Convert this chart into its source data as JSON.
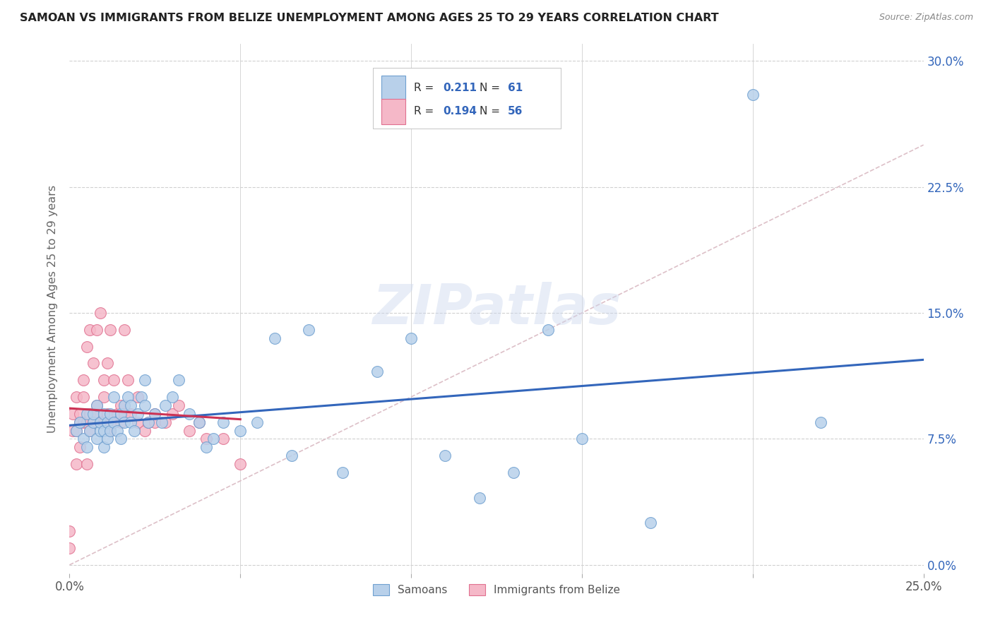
{
  "title": "SAMOAN VS IMMIGRANTS FROM BELIZE UNEMPLOYMENT AMONG AGES 25 TO 29 YEARS CORRELATION CHART",
  "source": "Source: ZipAtlas.com",
  "ylabel": "Unemployment Among Ages 25 to 29 years",
  "legend_labels": [
    "Samoans",
    "Immigrants from Belize"
  ],
  "R_samoan": 0.211,
  "N_samoan": 61,
  "R_belize": 0.194,
  "N_belize": 56,
  "xlim": [
    0.0,
    0.25
  ],
  "ylim": [
    -0.01,
    0.31
  ],
  "plot_ylim": [
    0.0,
    0.3
  ],
  "xticks": [
    0.0,
    0.05,
    0.1,
    0.15,
    0.2,
    0.25
  ],
  "yticks": [
    0.0,
    0.075,
    0.15,
    0.225,
    0.3
  ],
  "ytick_labels_right": [
    "0.0%",
    "7.5%",
    "15.0%",
    "22.5%",
    "30.0%"
  ],
  "xtick_labels_sparse": [
    "0.0%",
    "",
    "",
    "",
    "",
    "25.0%"
  ],
  "color_samoan_fill": "#b8d0ea",
  "color_samoan_edge": "#6fa0d0",
  "color_belize_fill": "#f5b8c8",
  "color_belize_edge": "#e07090",
  "color_regression_samoan": "#3366bb",
  "color_regression_belize": "#cc3355",
  "color_diagonal": "#ddc0c8",
  "color_grid": "#d0d0d0",
  "background_color": "#ffffff",
  "title_color": "#222222",
  "source_color": "#888888",
  "samoan_x": [
    0.002,
    0.003,
    0.004,
    0.005,
    0.005,
    0.006,
    0.007,
    0.007,
    0.008,
    0.008,
    0.009,
    0.009,
    0.01,
    0.01,
    0.01,
    0.011,
    0.011,
    0.012,
    0.012,
    0.013,
    0.013,
    0.014,
    0.015,
    0.015,
    0.016,
    0.016,
    0.017,
    0.018,
    0.018,
    0.019,
    0.02,
    0.021,
    0.022,
    0.022,
    0.023,
    0.025,
    0.027,
    0.028,
    0.03,
    0.032,
    0.035,
    0.038,
    0.04,
    0.042,
    0.045,
    0.05,
    0.055,
    0.06,
    0.065,
    0.07,
    0.08,
    0.09,
    0.1,
    0.11,
    0.12,
    0.13,
    0.14,
    0.15,
    0.17,
    0.2,
    0.22
  ],
  "samoan_y": [
    0.08,
    0.085,
    0.075,
    0.07,
    0.09,
    0.08,
    0.085,
    0.09,
    0.075,
    0.095,
    0.08,
    0.085,
    0.07,
    0.08,
    0.09,
    0.075,
    0.085,
    0.08,
    0.09,
    0.085,
    0.1,
    0.08,
    0.075,
    0.09,
    0.085,
    0.095,
    0.1,
    0.085,
    0.095,
    0.08,
    0.09,
    0.1,
    0.095,
    0.11,
    0.085,
    0.09,
    0.085,
    0.095,
    0.1,
    0.11,
    0.09,
    0.085,
    0.07,
    0.075,
    0.085,
    0.08,
    0.085,
    0.135,
    0.065,
    0.14,
    0.055,
    0.115,
    0.135,
    0.065,
    0.04,
    0.055,
    0.14,
    0.075,
    0.025,
    0.28,
    0.085
  ],
  "belize_x": [
    0.0,
    0.0,
    0.001,
    0.001,
    0.002,
    0.002,
    0.002,
    0.003,
    0.003,
    0.003,
    0.004,
    0.004,
    0.004,
    0.005,
    0.005,
    0.005,
    0.006,
    0.006,
    0.006,
    0.007,
    0.007,
    0.008,
    0.008,
    0.008,
    0.009,
    0.009,
    0.01,
    0.01,
    0.01,
    0.011,
    0.011,
    0.012,
    0.012,
    0.013,
    0.013,
    0.014,
    0.015,
    0.015,
    0.016,
    0.016,
    0.017,
    0.018,
    0.02,
    0.02,
    0.022,
    0.023,
    0.025,
    0.025,
    0.028,
    0.03,
    0.032,
    0.035,
    0.038,
    0.04,
    0.045,
    0.05
  ],
  "belize_y": [
    0.01,
    0.02,
    0.08,
    0.09,
    0.06,
    0.08,
    0.1,
    0.07,
    0.085,
    0.09,
    0.085,
    0.1,
    0.11,
    0.06,
    0.085,
    0.13,
    0.08,
    0.09,
    0.14,
    0.085,
    0.12,
    0.09,
    0.095,
    0.14,
    0.085,
    0.15,
    0.085,
    0.1,
    0.11,
    0.09,
    0.12,
    0.08,
    0.14,
    0.085,
    0.11,
    0.09,
    0.085,
    0.095,
    0.14,
    0.09,
    0.11,
    0.09,
    0.085,
    0.1,
    0.08,
    0.085,
    0.085,
    0.09,
    0.085,
    0.09,
    0.095,
    0.08,
    0.085,
    0.075,
    0.075,
    0.06
  ]
}
